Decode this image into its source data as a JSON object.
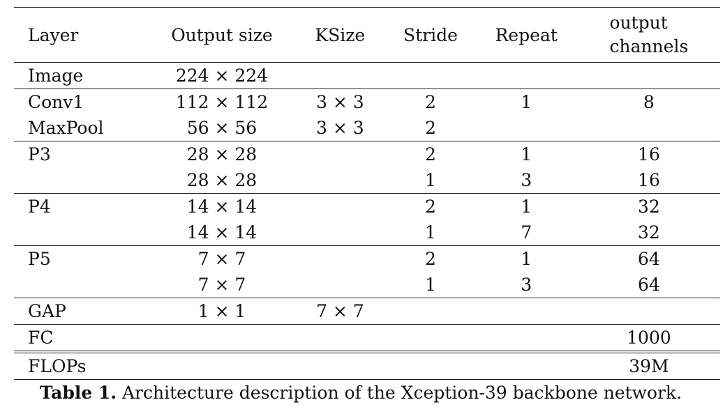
{
  "table": {
    "headers": {
      "layer": "Layer",
      "output_size": "Output size",
      "ksize": "KSize",
      "stride": "Stride",
      "repeat": "Repeat",
      "channels_line1": "output",
      "channels_line2": "channels"
    },
    "rows": [
      {
        "layer": "Image",
        "output_size": "224 × 224",
        "ksize": "",
        "stride": "",
        "repeat": "",
        "channels": ""
      },
      {
        "layer": "Conv1",
        "output_size": "112 × 112",
        "ksize": "3 × 3",
        "stride": "2",
        "repeat": "1",
        "channels": "8"
      },
      {
        "layer": "MaxPool",
        "output_size": "56 × 56",
        "ksize": "3 × 3",
        "stride": "2",
        "repeat": "",
        "channels": ""
      },
      {
        "layer": "P3",
        "output_size": "28 × 28",
        "ksize": "",
        "stride": "2",
        "repeat": "1",
        "channels": "16"
      },
      {
        "layer": "",
        "output_size": "28 × 28",
        "ksize": "",
        "stride": "1",
        "repeat": "3",
        "channels": "16"
      },
      {
        "layer": "P4",
        "output_size": "14 × 14",
        "ksize": "",
        "stride": "2",
        "repeat": "1",
        "channels": "32"
      },
      {
        "layer": "",
        "output_size": "14 × 14",
        "ksize": "",
        "stride": "1",
        "repeat": "7",
        "channels": "32"
      },
      {
        "layer": "P5",
        "output_size": "7 × 7",
        "ksize": "",
        "stride": "2",
        "repeat": "1",
        "channels": "64"
      },
      {
        "layer": "",
        "output_size": "7 × 7",
        "ksize": "",
        "stride": "1",
        "repeat": "3",
        "channels": "64"
      },
      {
        "layer": "GAP",
        "output_size": "1 × 1",
        "ksize": "7 × 7",
        "stride": "",
        "repeat": "",
        "channels": ""
      },
      {
        "layer": "FC",
        "output_size": "",
        "ksize": "",
        "stride": "",
        "repeat": "",
        "channels": "1000"
      },
      {
        "layer": "FLOPs",
        "output_size": "",
        "ksize": "",
        "stride": "",
        "repeat": "",
        "channels": "39M"
      }
    ]
  },
  "caption": {
    "label": "Table 1.",
    "text": " Architecture description of the Xception-39 backbone network."
  }
}
